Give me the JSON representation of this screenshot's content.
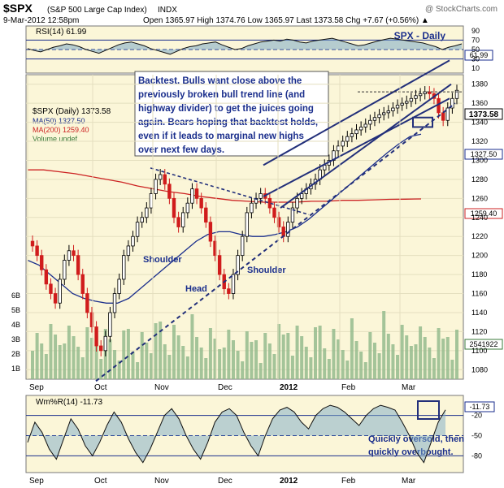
{
  "header": {
    "symbol": "$SPX",
    "name": "(S&P 500 Large Cap Index)",
    "exchange": "INDX",
    "watermark": "@ StockCharts.com",
    "date": "9-Mar-2012 12:58pm",
    "quote": "Open 1365.97  High 1374.76  Low 1365.97  Last 1373.58  Chg +7.67 (+0.56%) ▲"
  },
  "panel_labels": {
    "rsi": "RSI(14) 61.99",
    "rsi_value": "61.99",
    "spx_daily": "SPX - Daily",
    "price_legend": "$SPX (Daily) 1373.58",
    "ma50": "MA(50) 1327.50",
    "ma200": "MA(200) 1259.40",
    "volume": "Volume undef",
    "wm": "Wm%R(14) -11.73",
    "wm_value": "-11.73"
  },
  "price_tags": {
    "last": "1373.58",
    "ma50": "1327.50",
    "ma200": "1259.40",
    "volume": "2541922"
  },
  "annotations": {
    "backtest": [
      "Backtest. Bulls want close above the",
      "previously broken bull trend line (and",
      "highway divider) to get the juices going",
      "again. Bears hoping that backtest holds,",
      "even if it leads to marginal new highs",
      "over next few days."
    ],
    "shoulder_left": "Shoulder",
    "head": "Head",
    "shoulder_right": "Shoulder",
    "oversold": [
      "Quickly oversold, then",
      "quickly overbought."
    ]
  },
  "colors": {
    "panel_bg": "#fbf6d8",
    "up": "#000000",
    "down": "#d01c1c",
    "ma50": "#1a2e8c",
    "ma200": "#cc2222",
    "trend": "#222f7a",
    "volume": "#8fb88a",
    "rsi_fill": "#7ca9c8"
  },
  "chart_data": [
    {
      "type": "line",
      "title": "RSI(14) 61.99",
      "yticks": [
        10,
        30,
        50,
        70,
        90
      ],
      "reference_lines": [
        30,
        50,
        70
      ],
      "values": [
        52,
        48,
        45,
        50,
        55,
        58,
        62,
        60,
        56,
        50,
        46,
        42,
        48,
        54,
        60,
        64,
        66,
        62,
        58,
        52,
        48,
        44,
        40,
        46,
        52,
        56,
        58,
        62,
        64,
        66,
        60,
        55,
        50,
        52,
        58,
        62,
        66,
        68,
        70,
        68,
        72,
        70,
        66,
        64,
        68,
        70,
        72,
        74,
        70,
        66,
        62,
        58,
        60,
        64,
        68,
        71,
        74,
        72,
        70,
        68,
        66,
        64,
        60,
        56,
        50,
        55,
        58,
        61.99
      ]
    },
    {
      "type": "candlestick",
      "title": "$SPX (Daily) 1373.58",
      "x_labels": [
        "Sep",
        "Oct",
        "Nov",
        "Dec",
        "2012",
        "Feb",
        "Mar"
      ],
      "yticks": [
        1080,
        1100,
        1120,
        1140,
        1160,
        1180,
        1200,
        1220,
        1240,
        1260,
        1280,
        1300,
        1320,
        1340,
        1360,
        1380
      ],
      "ylim": [
        1070,
        1390
      ],
      "volume_ticks": [
        "1B",
        "2B",
        "3B",
        "4B",
        "5B",
        "6B"
      ],
      "closes": [
        1210,
        1200,
        1185,
        1170,
        1160,
        1150,
        1175,
        1195,
        1205,
        1200,
        1180,
        1160,
        1140,
        1125,
        1105,
        1100,
        1115,
        1140,
        1160,
        1175,
        1200,
        1210,
        1220,
        1235,
        1240,
        1250,
        1265,
        1280,
        1285,
        1275,
        1260,
        1240,
        1230,
        1245,
        1255,
        1270,
        1260,
        1250,
        1235,
        1215,
        1200,
        1180,
        1165,
        1160,
        1180,
        1200,
        1220,
        1245,
        1255,
        1260,
        1265,
        1260,
        1250,
        1240,
        1230,
        1220,
        1235,
        1250,
        1260,
        1265,
        1270,
        1275,
        1280,
        1290,
        1295,
        1300,
        1310,
        1315,
        1320,
        1325,
        1328,
        1332,
        1335,
        1338,
        1342,
        1345,
        1348,
        1350,
        1352,
        1355,
        1358,
        1360,
        1362,
        1365,
        1368,
        1370,
        1372,
        1370,
        1365,
        1350,
        1342,
        1355,
        1365,
        1373.58
      ],
      "ma50": [
        1195,
        1190,
        1180,
        1170,
        1160,
        1155,
        1152,
        1150,
        1150,
        1155,
        1165,
        1175,
        1185,
        1195,
        1205,
        1215,
        1222,
        1225,
        1225,
        1222,
        1220,
        1220,
        1222,
        1225,
        1230,
        1238,
        1248,
        1258,
        1268,
        1278,
        1288,
        1298,
        1308,
        1317,
        1325,
        1327.5
      ],
      "ma200": [
        1290,
        1290,
        1288,
        1286,
        1283,
        1280,
        1277,
        1273,
        1270,
        1267,
        1265,
        1262,
        1260,
        1258,
        1257,
        1256,
        1256,
        1256,
        1257,
        1257,
        1258,
        1258,
        1258.5,
        1259,
        1259.2,
        1259.4
      ],
      "series": [
        {
          "name": "MA(50) 1327.50",
          "last": 1327.5
        },
        {
          "name": "MA(200) 1259.40",
          "last": 1259.4
        },
        {
          "name": "Volume undef"
        }
      ]
    },
    {
      "type": "line",
      "title": "Wm%R(14) -11.73",
      "yticks": [
        -20,
        -50,
        -80
      ],
      "reference_lines": [
        -20,
        -50,
        -80
      ],
      "x_labels": [
        "Sep",
        "Oct",
        "Nov",
        "Dec",
        "2012",
        "Feb",
        "Mar"
      ],
      "values": [
        -60,
        -30,
        -45,
        -70,
        -85,
        -55,
        -25,
        -40,
        -65,
        -80,
        -60,
        -35,
        -15,
        -30,
        -55,
        -75,
        -90,
        -70,
        -45,
        -20,
        -10,
        -25,
        -50,
        -70,
        -85,
        -60,
        -30,
        -15,
        -10,
        -20,
        -45,
        -65,
        -80,
        -50,
        -25,
        -12,
        -8,
        -15,
        -30,
        -40,
        -20,
        -10,
        -5,
        -8,
        -15,
        -25,
        -35,
        -20,
        -10,
        -5,
        -8,
        -12,
        -30,
        -50,
        -75,
        -90,
        -60,
        -30,
        -11.73
      ]
    }
  ]
}
